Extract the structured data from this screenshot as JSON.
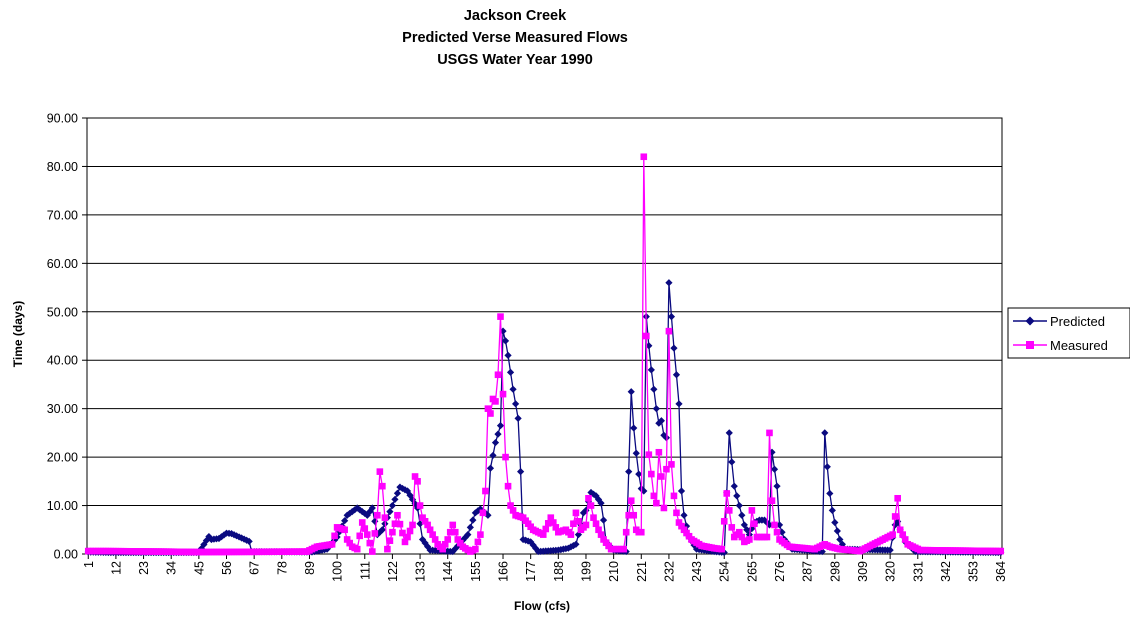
{
  "chart_data": {
    "type": "line",
    "title": [
      "Jackson Creek",
      "Predicted Verse Measured Flows",
      "USGS Water Year 1990"
    ],
    "xlabel": "Flow (cfs)",
    "ylabel": "Time (days)",
    "ylim": [
      0,
      90
    ],
    "yticks": [
      "0.00",
      "10.00",
      "20.00",
      "30.00",
      "40.00",
      "50.00",
      "60.00",
      "70.00",
      "80.00",
      "90.00"
    ],
    "xlim": [
      1,
      364
    ],
    "xticks": [
      1,
      12,
      23,
      34,
      45,
      56,
      67,
      78,
      89,
      100,
      111,
      122,
      133,
      144,
      155,
      166,
      177,
      188,
      199,
      210,
      221,
      232,
      243,
      254,
      265,
      276,
      287,
      298,
      309,
      320,
      331,
      342,
      353,
      364
    ],
    "grid": "horizontal",
    "legend_position": "right",
    "series": [
      {
        "name": "Predicted",
        "color": "#0a0a80",
        "marker": "diamond",
        "keypoints": [
          [
            1,
            0.4
          ],
          [
            10,
            0.3
          ],
          [
            45,
            0.3
          ],
          [
            49,
            3.6
          ],
          [
            50,
            3
          ],
          [
            53,
            3.2
          ],
          [
            56,
            4.3
          ],
          [
            58,
            4.2
          ],
          [
            62,
            3.3
          ],
          [
            65,
            2.6
          ],
          [
            66,
            0.5
          ],
          [
            90,
            0.4
          ],
          [
            96,
            1
          ],
          [
            100,
            3.5
          ],
          [
            104,
            8
          ],
          [
            108,
            9.5
          ],
          [
            112,
            8
          ],
          [
            114,
            9.5
          ],
          [
            116,
            4
          ],
          [
            118,
            5
          ],
          [
            122,
            10
          ],
          [
            125,
            13.8
          ],
          [
            128,
            13
          ],
          [
            132,
            9.5
          ],
          [
            134,
            3
          ],
          [
            137,
            0.8
          ],
          [
            146,
            0.5
          ],
          [
            152,
            4
          ],
          [
            155,
            8.5
          ],
          [
            157,
            9.3
          ],
          [
            160,
            8
          ],
          [
            161,
            17.7
          ],
          [
            163,
            23
          ],
          [
            165,
            26.5
          ],
          [
            166,
            46
          ],
          [
            167,
            44
          ],
          [
            168,
            41
          ],
          [
            170,
            34
          ],
          [
            172,
            28
          ],
          [
            173,
            17
          ],
          [
            174,
            3
          ],
          [
            177,
            2.5
          ],
          [
            180,
            0.5
          ],
          [
            188,
            0.8
          ],
          [
            192,
            1.2
          ],
          [
            195,
            2
          ],
          [
            197,
            6
          ],
          [
            198,
            8.5
          ],
          [
            199,
            9
          ],
          [
            201,
            12.7
          ],
          [
            203,
            12
          ],
          [
            205,
            10.5
          ],
          [
            206,
            7
          ],
          [
            207,
            2.5
          ],
          [
            210,
            0.8
          ],
          [
            215,
            0.5
          ],
          [
            217,
            33.5
          ],
          [
            218,
            26
          ],
          [
            219,
            20.8
          ],
          [
            220,
            16.5
          ],
          [
            221,
            13.5
          ],
          [
            222,
            13
          ],
          [
            223,
            49
          ],
          [
            224,
            43
          ],
          [
            225,
            38
          ],
          [
            226,
            34
          ],
          [
            227,
            30
          ],
          [
            228,
            27
          ],
          [
            229,
            27.5
          ],
          [
            230,
            24.5
          ],
          [
            231,
            24
          ],
          [
            232,
            56
          ],
          [
            233,
            49
          ],
          [
            234,
            42.5
          ],
          [
            235,
            37
          ],
          [
            236,
            31
          ],
          [
            237,
            13
          ],
          [
            238,
            8
          ],
          [
            240,
            3.5
          ],
          [
            243,
            1
          ],
          [
            250,
            0.5
          ],
          [
            254,
            0.3
          ],
          [
            256,
            25
          ],
          [
            257,
            19
          ],
          [
            258,
            14
          ],
          [
            260,
            10
          ],
          [
            262,
            6
          ],
          [
            264,
            4
          ],
          [
            266,
            6.5
          ],
          [
            268,
            7
          ],
          [
            270,
            7
          ],
          [
            272,
            6
          ],
          [
            273,
            21
          ],
          [
            274,
            17.5
          ],
          [
            275,
            14
          ],
          [
            276,
            6
          ],
          [
            278,
            3
          ],
          [
            281,
            1
          ],
          [
            293,
            0.5
          ],
          [
            294,
            25
          ],
          [
            295,
            18
          ],
          [
            296,
            12.5
          ],
          [
            297,
            9
          ],
          [
            298,
            6.5
          ],
          [
            300,
            3
          ],
          [
            302,
            1
          ],
          [
            320,
            0.8
          ],
          [
            322,
            6
          ],
          [
            323,
            6.7
          ],
          [
            324,
            5
          ],
          [
            326,
            2.5
          ],
          [
            330,
            0.5
          ],
          [
            364,
            0.3
          ]
        ]
      },
      {
        "name": "Measured",
        "color": "#ff00ff",
        "marker": "square",
        "keypoints": [
          [
            1,
            0.6
          ],
          [
            8,
            0.6
          ],
          [
            30,
            0.5
          ],
          [
            45,
            0.4
          ],
          [
            88,
            0.5
          ],
          [
            92,
            1.5
          ],
          [
            98,
            2
          ],
          [
            100,
            5.5
          ],
          [
            103,
            5
          ],
          [
            104,
            3
          ],
          [
            106,
            1.5
          ],
          [
            108,
            1
          ],
          [
            110,
            6.5
          ],
          [
            112,
            4
          ],
          [
            114,
            0.5
          ],
          [
            116,
            8
          ],
          [
            117,
            17
          ],
          [
            118,
            14
          ],
          [
            120,
            1
          ],
          [
            124,
            8
          ],
          [
            127,
            2.5
          ],
          [
            128,
            3.5
          ],
          [
            130,
            6
          ],
          [
            131,
            16
          ],
          [
            132,
            15
          ],
          [
            133,
            10
          ],
          [
            134,
            7.5
          ],
          [
            136,
            6
          ],
          [
            138,
            4
          ],
          [
            140,
            2
          ],
          [
            142,
            1
          ],
          [
            144,
            3
          ],
          [
            146,
            6
          ],
          [
            148,
            3
          ],
          [
            150,
            1.5
          ],
          [
            153,
            0.5
          ],
          [
            155,
            1
          ],
          [
            157,
            4
          ],
          [
            159,
            13
          ],
          [
            160,
            30
          ],
          [
            161,
            29
          ],
          [
            162,
            32
          ],
          [
            163,
            31.5
          ],
          [
            164,
            37
          ],
          [
            165,
            49
          ],
          [
            166,
            33
          ],
          [
            167,
            20
          ],
          [
            168,
            14
          ],
          [
            169,
            10
          ],
          [
            171,
            8
          ],
          [
            174,
            7.5
          ],
          [
            178,
            5
          ],
          [
            182,
            4
          ],
          [
            185,
            7.5
          ],
          [
            188,
            4.5
          ],
          [
            191,
            5
          ],
          [
            193,
            4
          ],
          [
            195,
            8.5
          ],
          [
            197,
            5
          ],
          [
            199,
            6
          ],
          [
            200,
            11.5
          ],
          [
            201,
            10
          ],
          [
            202,
            7.5
          ],
          [
            204,
            5
          ],
          [
            206,
            3
          ],
          [
            209,
            1
          ],
          [
            212,
            1
          ],
          [
            214,
            1
          ],
          [
            216,
            8
          ],
          [
            217,
            11
          ],
          [
            218,
            8
          ],
          [
            219,
            5
          ],
          [
            220,
            4.5
          ],
          [
            221,
            4.5
          ],
          [
            222,
            82
          ],
          [
            223,
            45
          ],
          [
            224,
            20.5
          ],
          [
            225,
            16.5
          ],
          [
            226,
            12
          ],
          [
            227,
            10.5
          ],
          [
            228,
            21
          ],
          [
            229,
            16
          ],
          [
            230,
            9.5
          ],
          [
            231,
            17.5
          ],
          [
            232,
            46
          ],
          [
            233,
            18.5
          ],
          [
            234,
            12
          ],
          [
            235,
            8.5
          ],
          [
            236,
            6.5
          ],
          [
            238,
            5
          ],
          [
            241,
            3
          ],
          [
            245,
            1.7
          ],
          [
            250,
            1.2
          ],
          [
            253,
            1
          ],
          [
            255,
            12.5
          ],
          [
            257,
            5.5
          ],
          [
            258,
            3.5
          ],
          [
            260,
            4.5
          ],
          [
            262,
            2.5
          ],
          [
            264,
            3
          ],
          [
            265,
            9
          ],
          [
            267,
            3.5
          ],
          [
            269,
            3.5
          ],
          [
            271,
            3.5
          ],
          [
            272,
            25
          ],
          [
            273,
            11
          ],
          [
            274,
            6
          ],
          [
            276,
            3
          ],
          [
            280,
            1.5
          ],
          [
            290,
            1
          ],
          [
            294,
            2
          ],
          [
            296,
            1.5
          ],
          [
            300,
            1
          ],
          [
            308,
            0.6
          ],
          [
            321,
            4
          ],
          [
            323,
            11.5
          ],
          [
            324,
            5
          ],
          [
            325,
            4
          ],
          [
            327,
            2
          ],
          [
            332,
            0.8
          ],
          [
            364,
            0.6
          ]
        ]
      }
    ]
  }
}
